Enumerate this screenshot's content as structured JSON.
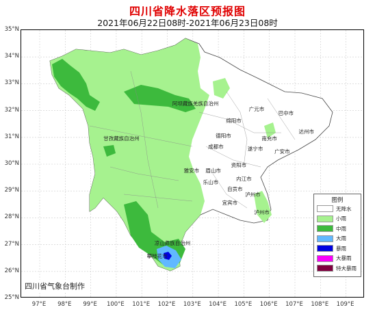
{
  "title": "四川省降水落区预报图",
  "subtitle": "2021年06月22日08时-2021年06月23日08时",
  "credit": "四川省气象台制作",
  "latitudes": [
    "35°N",
    "34°N",
    "33°N",
    "32°N",
    "31°N",
    "30°N",
    "29°N",
    "28°N",
    "27°N",
    "26°N",
    "25°N"
  ],
  "longitudes": [
    "97°E",
    "98°E",
    "99°E",
    "100°E",
    "101°E",
    "102°E",
    "103°E",
    "104°E",
    "105°E",
    "106°E",
    "107°E",
    "108°E",
    "109°E"
  ],
  "legend": {
    "title": "图例",
    "items": [
      {
        "label": "无降水",
        "color": "#ffffff"
      },
      {
        "label": "小雨",
        "color": "#a6f28f"
      },
      {
        "label": "中雨",
        "color": "#3dba3d"
      },
      {
        "label": "大雨",
        "color": "#61b8ff"
      },
      {
        "label": "暴雨",
        "color": "#0000e1"
      },
      {
        "label": "大暴雨",
        "color": "#fa00fa"
      },
      {
        "label": "特大暴雨",
        "color": "#800040"
      }
    ]
  },
  "cities": [
    {
      "name": "阿坝藏族羌族自治州",
      "lon": 102.6,
      "lat": 32.25
    },
    {
      "name": "甘孜藏族自治州",
      "lon": 99.9,
      "lat": 30.95
    },
    {
      "name": "凉山彝族自治州",
      "lon": 101.9,
      "lat": 27.05
    },
    {
      "name": "攀枝花市",
      "lon": 101.6,
      "lat": 26.55
    },
    {
      "name": "广元市",
      "lon": 105.6,
      "lat": 32.05
    },
    {
      "name": "巴中市",
      "lon": 106.75,
      "lat": 31.9
    },
    {
      "name": "绵阳市",
      "lon": 104.7,
      "lat": 31.6
    },
    {
      "name": "达州市",
      "lon": 107.55,
      "lat": 31.2
    },
    {
      "name": "德阳市",
      "lon": 104.3,
      "lat": 31.05
    },
    {
      "name": "南充市",
      "lon": 106.1,
      "lat": 30.95
    },
    {
      "name": "成都市",
      "lon": 104.0,
      "lat": 30.65
    },
    {
      "name": "遂宁市",
      "lon": 105.55,
      "lat": 30.55
    },
    {
      "name": "广安市",
      "lon": 106.6,
      "lat": 30.45
    },
    {
      "name": "雅安市",
      "lon": 103.05,
      "lat": 29.75
    },
    {
      "name": "眉山市",
      "lon": 103.9,
      "lat": 29.75
    },
    {
      "name": "资阳市",
      "lon": 104.9,
      "lat": 29.95
    },
    {
      "name": "内江市",
      "lon": 105.1,
      "lat": 29.45
    },
    {
      "name": "乐山市",
      "lon": 103.8,
      "lat": 29.3
    },
    {
      "name": "自贡市",
      "lon": 104.75,
      "lat": 29.05
    },
    {
      "name": "泸州市",
      "lon": 105.45,
      "lat": 28.85
    },
    {
      "name": "宜宾市",
      "lon": 104.55,
      "lat": 28.55
    },
    {
      "name": "泸州市",
      "lon": 105.8,
      "lat": 28.2
    }
  ]
}
